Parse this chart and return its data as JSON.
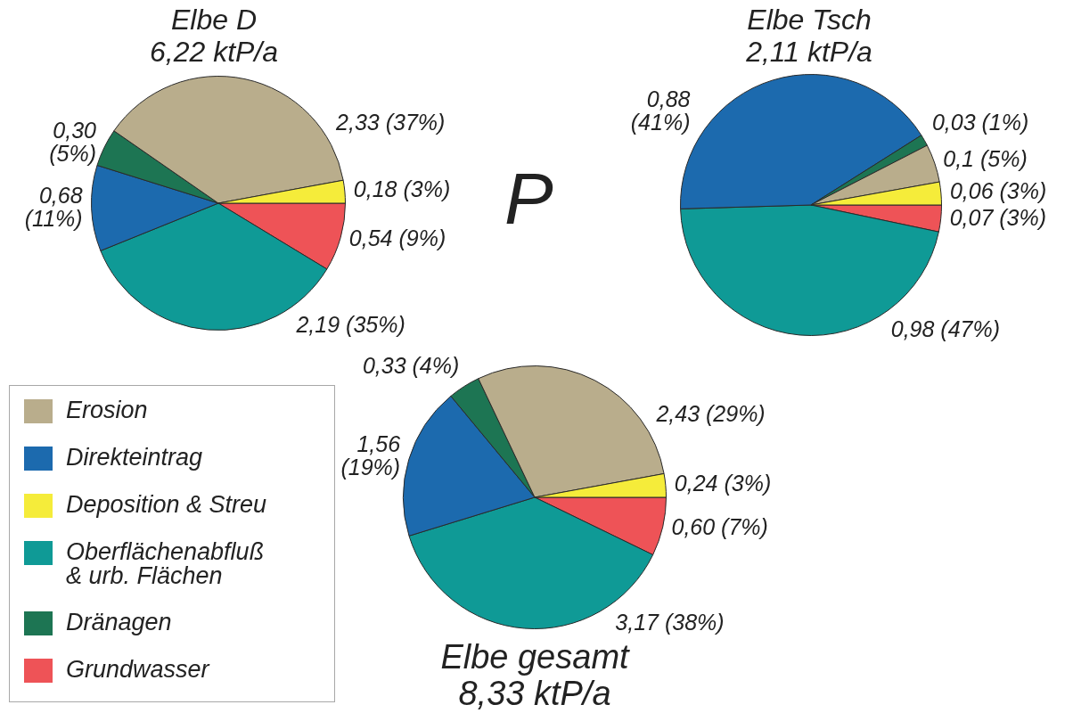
{
  "chart_data": [
    {
      "type": "pie",
      "title": "Elbe D",
      "subtitle": "6,22 ktP/a",
      "categories": [
        null,
        null,
        null,
        null,
        null,
        null
      ],
      "values": [
        0.54,
        2.19,
        0.68,
        0.3,
        2.33,
        0.18
      ],
      "value_labels": [
        "0,54 (9%)",
        "2,19 (35%)",
        "0,68 (11%)",
        "0,30 (5%)",
        "2,33 (37%)",
        "0,18 (3%)"
      ],
      "colors": [
        "#ee5357",
        "#0f9a96",
        "#1c6aae",
        "#1d7553",
        "#b9ad8c",
        "#f5ec3a"
      ],
      "annotations": [
        "P"
      ]
    },
    {
      "type": "pie",
      "title": "Elbe Tsch",
      "subtitle": "2,11 ktP/a",
      "categories": [
        null,
        null,
        null,
        null,
        null,
        null
      ],
      "values": [
        0.07,
        0.98,
        0.88,
        0.03,
        0.1,
        0.06
      ],
      "value_labels": [
        "0,07 (3%)",
        "0,98 (47%)",
        "0,88 (41%)",
        "0,03 (1%)",
        "0,1 (5%)",
        "0,06 (3%)"
      ],
      "colors": [
        "#ee5357",
        "#0f9a96",
        "#1c6aae",
        "#1d7553",
        "#b9ad8c",
        "#f5ec3a"
      ]
    },
    {
      "type": "pie",
      "title": "Elbe gesamt",
      "subtitle": "8,33 ktP/a",
      "categories": [
        "Grundwasser",
        "Oberflächenabfluß & urb. Flächen",
        "Direkteintrag",
        "Dränagen",
        "Erosion",
        "Deposition & Streu"
      ],
      "values": [
        0.6,
        3.17,
        1.56,
        0.33,
        2.43,
        0.24
      ],
      "value_labels": [
        "0,60 (7%)",
        "3,17 (38%)",
        "1,56 (19%)",
        "0,33 (4%)",
        "2,43 (29%)",
        "0,24 (3%)"
      ],
      "colors": [
        "#ee5357",
        "#0f9a96",
        "#1c6aae",
        "#1d7553",
        "#b9ad8c",
        "#f5ec3a"
      ],
      "legend": "left"
    }
  ]
}
